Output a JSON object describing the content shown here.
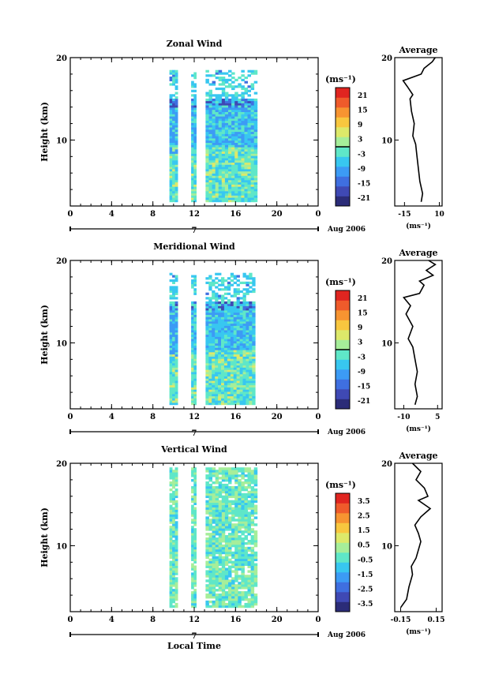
{
  "figure": {
    "x_title": "Local Time",
    "date_label": "Aug 2006",
    "day_label": "7",
    "unit_label": "(ms⁻¹)",
    "average_title": "Average"
  },
  "chart_data": [
    {
      "type": "heatmap",
      "title": "Zonal Wind",
      "ylabel": "Height (km)",
      "xlim": [
        0,
        24
      ],
      "ylim": [
        2,
        20
      ],
      "xticks": [
        "0",
        "4",
        "8",
        "12",
        "16",
        "20",
        "0"
      ],
      "yticks": [
        "10",
        "20"
      ],
      "colorbar_ticks": [
        "21",
        "15",
        "9",
        "3",
        "-3",
        "-9",
        "-15",
        "-21"
      ],
      "data_columns": [
        [
          9.6,
          10.4
        ],
        [
          11.7,
          12.2
        ],
        [
          13.1,
          18.1
        ]
      ],
      "height_range": [
        2.5,
        18.5
      ],
      "typical_value": "-3 to -9",
      "average_profile": {
        "xticks": [
          "-15",
          "10"
        ],
        "xlim": [
          -22,
          12
        ],
        "xlabel": "(ms⁻¹)",
        "points": [
          [
            -3,
            2.5
          ],
          [
            -2,
            3.5
          ],
          [
            -4,
            5
          ],
          [
            -5,
            6.5
          ],
          [
            -6,
            8
          ],
          [
            -7,
            9.5
          ],
          [
            -9,
            10.5
          ],
          [
            -8,
            12
          ],
          [
            -10,
            13.5
          ],
          [
            -11,
            15
          ],
          [
            -9,
            15.5
          ],
          [
            -13,
            16.5
          ],
          [
            -16,
            17.2
          ],
          [
            -3,
            18
          ],
          [
            -1,
            18.7
          ],
          [
            5,
            19.5
          ],
          [
            7,
            20
          ]
        ]
      }
    },
    {
      "type": "heatmap",
      "title": "Meridional Wind",
      "ylabel": "Height (km)",
      "xlim": [
        0,
        24
      ],
      "ylim": [
        2,
        20
      ],
      "xticks": [
        "0",
        "4",
        "8",
        "12",
        "16",
        "20",
        "0"
      ],
      "yticks": [
        "10",
        "20"
      ],
      "colorbar_ticks": [
        "21",
        "15",
        "9",
        "3",
        "-3",
        "-9",
        "-15",
        "-21"
      ],
      "data_columns": [
        [
          9.6,
          10.4
        ],
        [
          11.7,
          12.2
        ],
        [
          13.1,
          17.9
        ]
      ],
      "height_range": [
        2.5,
        18.5
      ],
      "typical_value": "-3 to -9",
      "average_profile": {
        "xticks": [
          "-10",
          "5"
        ],
        "xlim": [
          -14,
          7
        ],
        "xlabel": "(ms⁻¹)",
        "points": [
          [
            -5,
            2.5
          ],
          [
            -4,
            3.5
          ],
          [
            -5,
            5
          ],
          [
            -4,
            6.5
          ],
          [
            -5,
            8
          ],
          [
            -6,
            9.5
          ],
          [
            -8,
            10.5
          ],
          [
            -6,
            12
          ],
          [
            -9,
            13.5
          ],
          [
            -7,
            14.5
          ],
          [
            -10,
            15.5
          ],
          [
            -3,
            16
          ],
          [
            -1,
            17
          ],
          [
            -3,
            17.5
          ],
          [
            3,
            18.2
          ],
          [
            0,
            18.8
          ],
          [
            4,
            19.5
          ],
          [
            1,
            20
          ]
        ]
      }
    },
    {
      "type": "heatmap",
      "title": "Vertical Wind",
      "ylabel": "Height (km)",
      "xlim": [
        0,
        24
      ],
      "ylim": [
        2,
        20
      ],
      "xticks": [
        "0",
        "4",
        "8",
        "12",
        "16",
        "20",
        "0"
      ],
      "yticks": [
        "10",
        "20"
      ],
      "colorbar_ticks": [
        "3.5",
        "2.5",
        "1.5",
        "0.5",
        "-0.5",
        "-1.5",
        "-2.5",
        "-3.5"
      ],
      "data_columns": [
        [
          9.6,
          10.4
        ],
        [
          11.7,
          12.2
        ],
        [
          13.1,
          18.1
        ]
      ],
      "height_range": [
        2.5,
        19.5
      ],
      "typical_value": "0 to -0.5",
      "average_profile": {
        "xticks": [
          "-0.15",
          "0.15"
        ],
        "xlim": [
          -0.2,
          0.2
        ],
        "xlabel": "(ms⁻¹)",
        "points": [
          [
            -0.15,
            2.5
          ],
          [
            -0.1,
            3.5
          ],
          [
            -0.08,
            5
          ],
          [
            -0.05,
            6.5
          ],
          [
            -0.06,
            7.5
          ],
          [
            -0.02,
            8.5
          ],
          [
            0.0,
            9.5
          ],
          [
            0.02,
            10.5
          ],
          [
            0.0,
            11.5
          ],
          [
            -0.03,
            12.5
          ],
          [
            0.02,
            13.5
          ],
          [
            0.1,
            14.5
          ],
          [
            0.0,
            15.5
          ],
          [
            0.08,
            16
          ],
          [
            0.05,
            17
          ],
          [
            -0.02,
            18
          ],
          [
            0.02,
            19
          ],
          [
            -0.05,
            20
          ]
        ]
      }
    }
  ],
  "colorbar_colors": [
    "#2b2c78",
    "#3f49b4",
    "#3f6fe0",
    "#3c9bf5",
    "#38c7f0",
    "#5fe7c8",
    "#a6ee9a",
    "#dde96a",
    "#f8c73f",
    "#f79431",
    "#ef5b2b",
    "#e02520"
  ]
}
